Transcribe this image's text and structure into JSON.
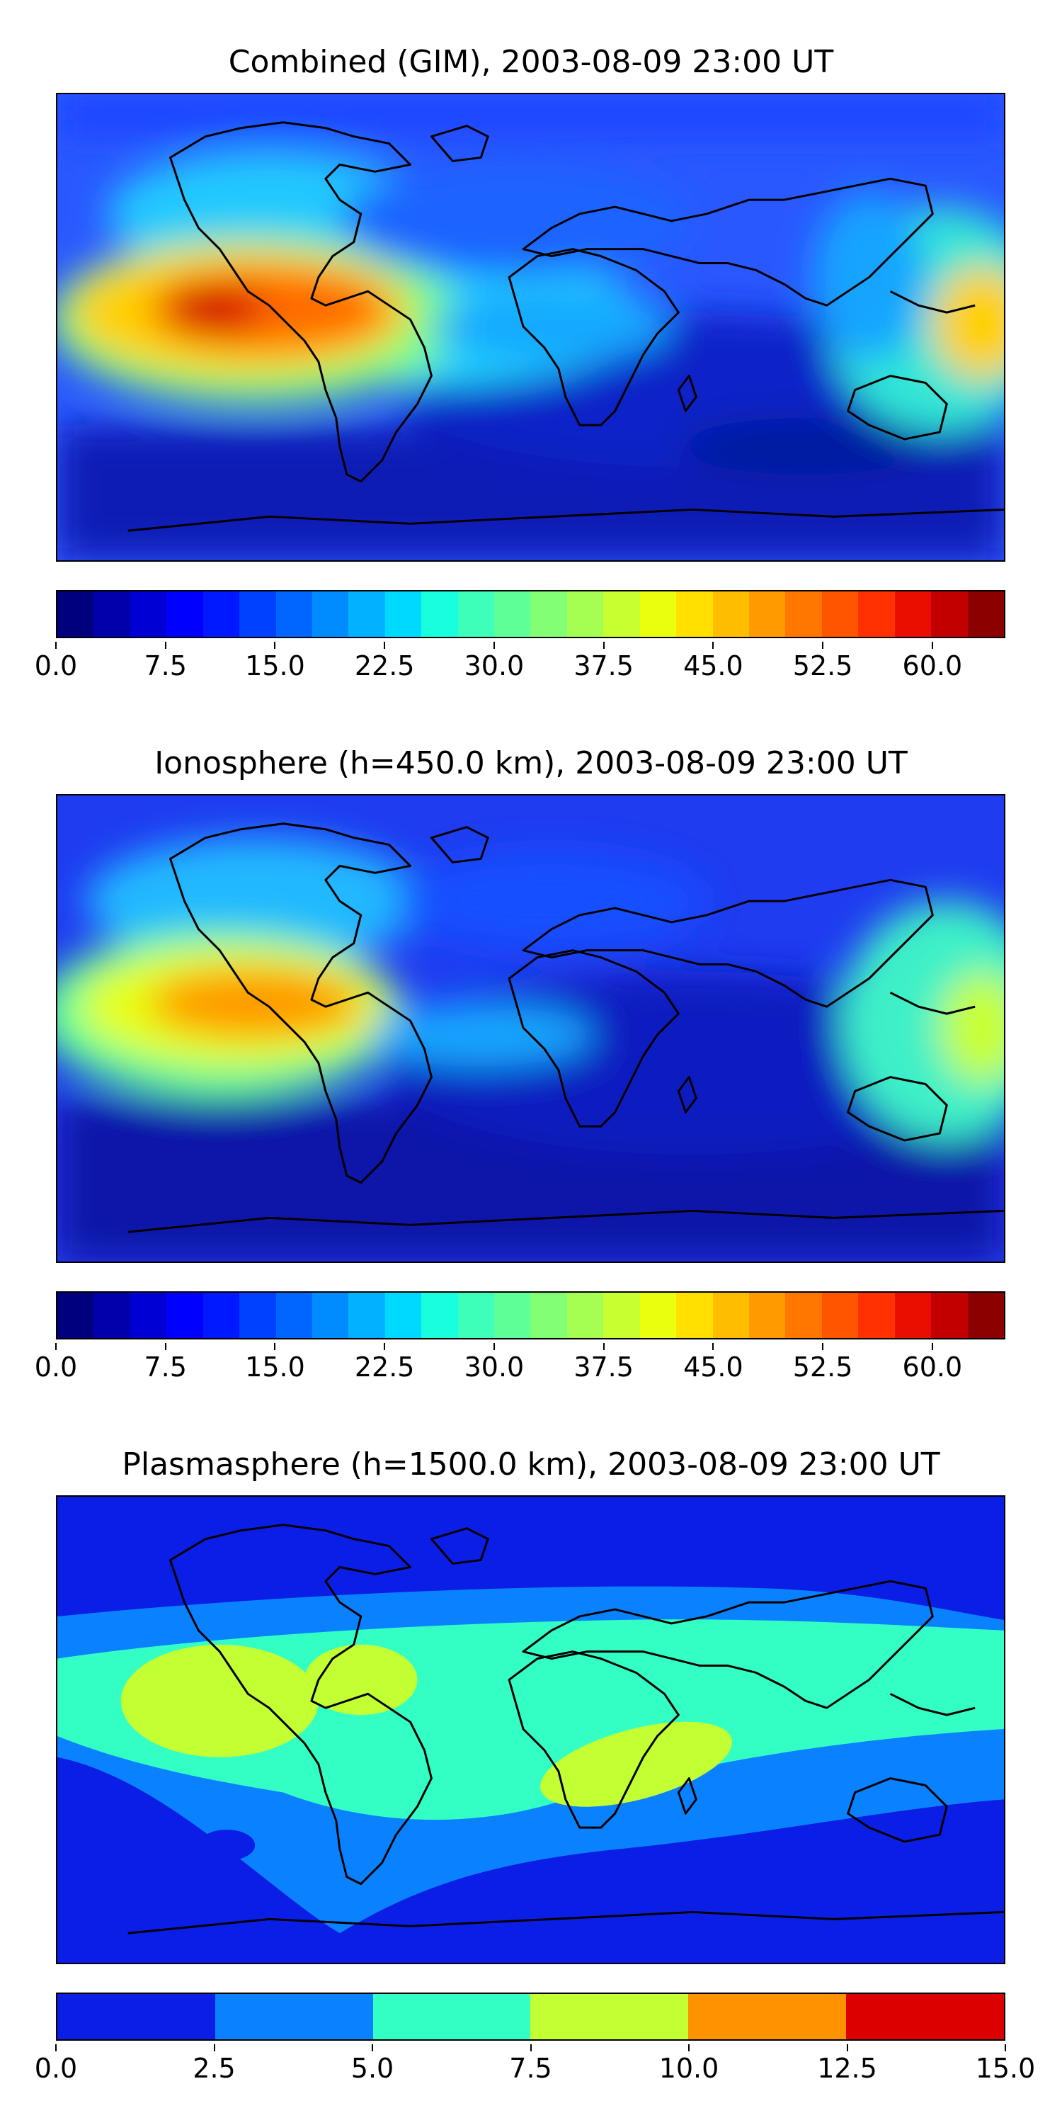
{
  "panels": [
    {
      "title": "Combined (GIM), 2003-08-09 23:00 UT",
      "background": "#2a58ff",
      "colorbar": {
        "min": 0,
        "max": 65,
        "n_levels": 26,
        "colors": [
          "#00007f",
          "#0000aa",
          "#0000d4",
          "#0000ff",
          "#0019ff",
          "#0040ff",
          "#0066ff",
          "#008cff",
          "#00b2ff",
          "#00d9ff",
          "#18ffde",
          "#3dffb9",
          "#5fff97",
          "#82ff74",
          "#a4ff52",
          "#c7ff30",
          "#e9ff0e",
          "#ffe000",
          "#ffbd00",
          "#ff9a00",
          "#ff7700",
          "#ff5400",
          "#ff3100",
          "#e90e00",
          "#c20000",
          "#8c0000"
        ],
        "ticks": [
          "0.0",
          "7.5",
          "15.0",
          "22.5",
          "30.0",
          "37.5",
          "45.0",
          "52.5",
          "60.0"
        ],
        "tick_values": [
          0,
          7.5,
          15,
          22.5,
          30,
          37.5,
          45,
          52.5,
          60
        ]
      }
    },
    {
      "title": "Ionosphere  (h=450.0 km), 2003-08-09 23:00 UT",
      "background": "#1f3cf0",
      "colorbar": {
        "min": 0,
        "max": 65,
        "n_levels": 26,
        "colors": [
          "#00007f",
          "#0000aa",
          "#0000d4",
          "#0000ff",
          "#0019ff",
          "#0040ff",
          "#0066ff",
          "#008cff",
          "#00b2ff",
          "#00d9ff",
          "#18ffde",
          "#3dffb9",
          "#5fff97",
          "#82ff74",
          "#a4ff52",
          "#c7ff30",
          "#e9ff0e",
          "#ffe000",
          "#ffbd00",
          "#ff9a00",
          "#ff7700",
          "#ff5400",
          "#ff3100",
          "#e90e00",
          "#c20000",
          "#8c0000"
        ],
        "ticks": [
          "0.0",
          "7.5",
          "15.0",
          "22.5",
          "30.0",
          "37.5",
          "45.0",
          "52.5",
          "60.0"
        ],
        "tick_values": [
          0,
          7.5,
          15,
          22.5,
          30,
          37.5,
          45,
          52.5,
          60
        ]
      }
    },
    {
      "title": "Plasmasphere (h=1500.0 km), 2003-08-09 23:00 UT",
      "background": "#0a1ee6",
      "colorbar": {
        "min": 0,
        "max": 15,
        "n_levels": 6,
        "colors": [
          "#0a1ee6",
          "#0a82ff",
          "#33ffc4",
          "#c2ff33",
          "#ff9200",
          "#dd0000"
        ],
        "ticks": [
          "0.0",
          "2.5",
          "5.0",
          "7.5",
          "10.0",
          "12.5",
          "15.0"
        ],
        "tick_values": [
          0,
          2.5,
          5,
          7.5,
          10,
          12.5,
          15
        ]
      }
    }
  ]
}
